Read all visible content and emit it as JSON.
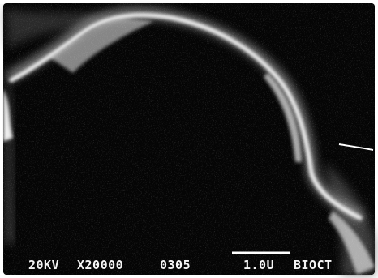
{
  "caption": {
    "voltage": "20KV",
    "magnification": "X20000",
    "image_number": "0305",
    "scale_label": "1.0U",
    "lab": "BIOCT"
  }
}
